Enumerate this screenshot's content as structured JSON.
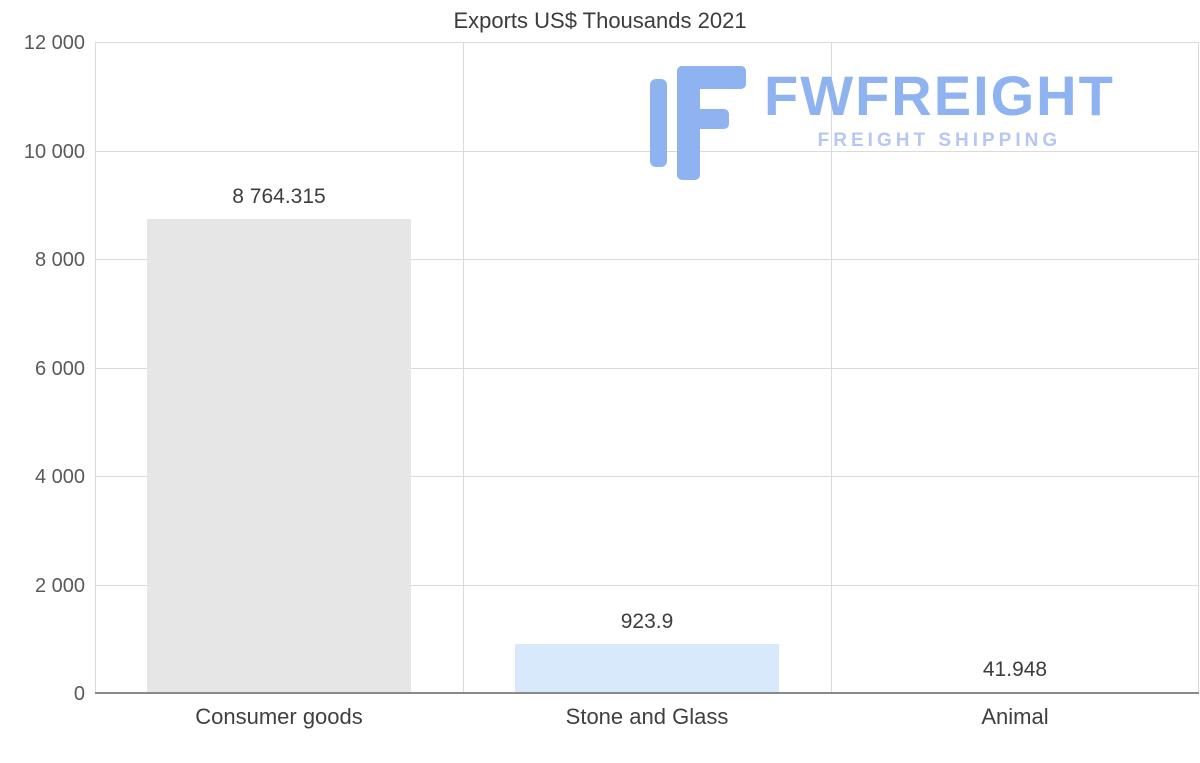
{
  "title": "Exports US$ Thousands 2021",
  "watermark": {
    "brand": "FWFREIGHT",
    "tagline": "FREIGHT SHIPPING",
    "brand_color": "#8fb2f0",
    "tagline_color": "#b6c7f3"
  },
  "colors": {
    "grid": "#dadada",
    "axis": "#8a8a8a",
    "text": "#3f3f3f",
    "tick_text": "#595959"
  },
  "chart_data": {
    "type": "bar",
    "title": "Exports US$ Thousands 2021",
    "categories": [
      "Consumer goods",
      "Stone and Glass",
      "Animal"
    ],
    "values": [
      8764.315,
      923.9,
      41.948
    ],
    "value_labels": [
      "8 764.315",
      "923.9",
      "41.948"
    ],
    "bar_colors": [
      "#e6e6e6",
      "#d7e9fb",
      "#cfe2f6"
    ],
    "xlabel": "",
    "ylabel": "",
    "ylim": [
      0,
      12000
    ],
    "ytick_step": 2000,
    "ytick_labels": [
      "0",
      "2 000",
      "4 000",
      "6 000",
      "8 000",
      "10 000",
      "12 000"
    ],
    "grid": true,
    "legend": false
  }
}
